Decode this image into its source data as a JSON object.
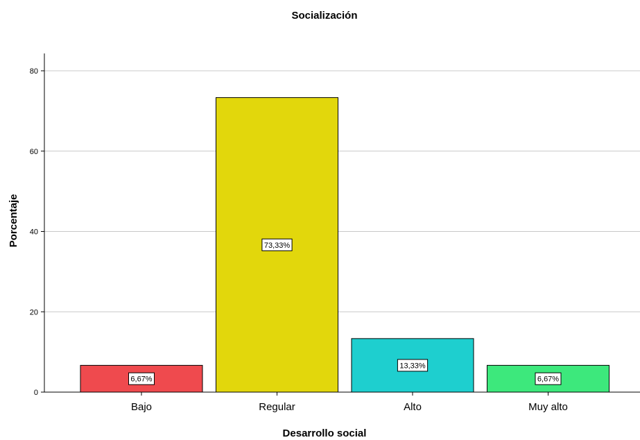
{
  "chart_data": {
    "type": "bar",
    "title": "Socialización",
    "xlabel": "Desarrollo social",
    "ylabel": "Porcentaje",
    "categories": [
      "Bajo",
      "Regular",
      "Alto",
      "Muy alto"
    ],
    "values": [
      6.67,
      73.33,
      13.33,
      6.67
    ],
    "data_labels": [
      "6,67%",
      "73,33%",
      "13,33%",
      "6,67%"
    ],
    "colors": [
      "#ef4a4e",
      "#e2d70c",
      "#1ecfcf",
      "#3de87c"
    ],
    "ylim": [
      0,
      80
    ],
    "yticks": [
      0,
      20,
      40,
      60,
      80
    ],
    "ytick_labels": [
      "0",
      "20",
      "40",
      "60",
      "80"
    ],
    "grid": true,
    "legend": "none"
  }
}
